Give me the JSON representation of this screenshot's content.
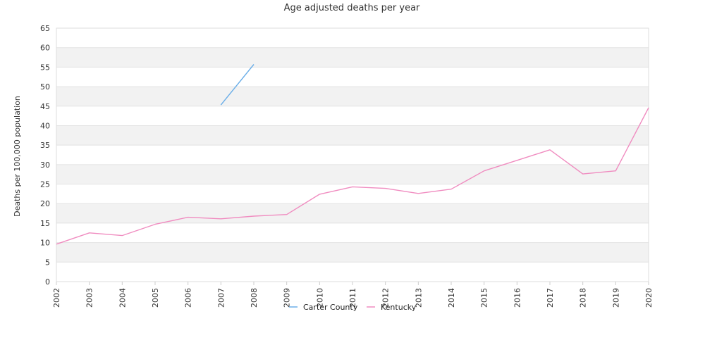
{
  "chart_data": {
    "type": "line",
    "title": "Age adjusted deaths per year",
    "ylabel": "Deaths per 100,000 population",
    "xlabel": "",
    "ylim": [
      0,
      65
    ],
    "y_ticks": [
      "0",
      "5",
      "10",
      "15",
      "20",
      "25",
      "30",
      "35",
      "40",
      "45",
      "50",
      "55",
      "60",
      "65"
    ],
    "x_tick_labels": [
      "2002",
      "2003",
      "2004",
      "2005",
      "2006",
      "2007",
      "2008",
      "2009",
      "2010",
      "2011",
      "2012",
      "2013",
      "2014",
      "2015",
      "2016",
      "2017",
      "2018",
      "2019",
      "2020"
    ],
    "x": [
      2002,
      2003,
      2004,
      2005,
      2006,
      2007,
      2008,
      2009,
      2010,
      2011,
      2012,
      2013,
      2014,
      2015,
      2016,
      2017,
      2018,
      2019,
      2020
    ],
    "grid": true,
    "legend_position": "bottom",
    "series": [
      {
        "name": "Carter County",
        "color": "#6aaee8",
        "values": [
          null,
          null,
          null,
          null,
          null,
          45.3,
          55.7,
          null,
          null,
          null,
          null,
          null,
          null,
          null,
          null,
          null,
          null,
          null,
          null
        ]
      },
      {
        "name": "Kentucky",
        "color": "#f08cc0",
        "values": [
          9.6,
          12.5,
          11.8,
          14.7,
          16.5,
          16.1,
          16.8,
          17.2,
          22.4,
          24.3,
          23.9,
          22.6,
          23.7,
          28.4,
          31.1,
          33.8,
          27.6,
          28.4,
          44.6
        ]
      }
    ]
  }
}
